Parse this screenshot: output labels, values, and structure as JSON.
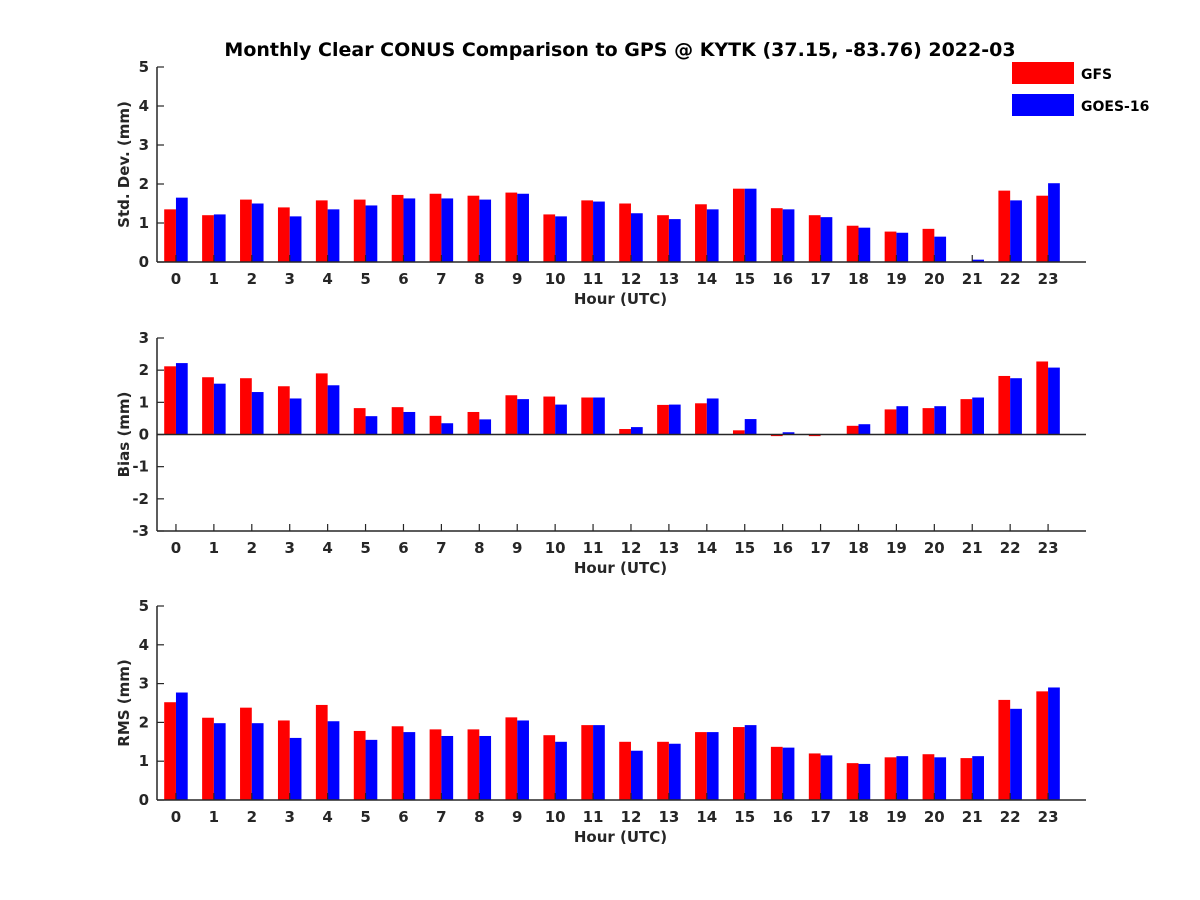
{
  "figure_title": "Monthly Clear CONUS Comparison to GPS @ KYTK (37.15, -83.76) 2022-03",
  "legend": [
    {
      "name": "GFS",
      "color": "#ff0000"
    },
    {
      "name": "GOES-16",
      "color": "#0000ff"
    }
  ],
  "chart_data": [
    {
      "type": "bar",
      "title": "",
      "xlabel": "Hour (UTC)",
      "ylabel": "Std. Dev. (mm)",
      "ylim": [
        0,
        5
      ],
      "yticks": [
        "0",
        "1",
        "2",
        "3",
        "4",
        "5"
      ],
      "categories": [
        "0",
        "1",
        "2",
        "3",
        "4",
        "5",
        "6",
        "7",
        "8",
        "9",
        "10",
        "11",
        "12",
        "13",
        "14",
        "15",
        "16",
        "17",
        "18",
        "19",
        "20",
        "21",
        "22",
        "23"
      ],
      "series": [
        {
          "name": "GFS",
          "color": "#ff0000",
          "values": [
            1.35,
            1.2,
            1.6,
            1.4,
            1.58,
            1.6,
            1.72,
            1.75,
            1.7,
            1.78,
            1.22,
            1.58,
            1.5,
            1.2,
            1.48,
            1.88,
            1.38,
            1.2,
            0.93,
            0.78,
            0.85,
            0.0,
            1.83,
            1.7
          ]
        },
        {
          "name": "GOES-16",
          "color": "#0000ff",
          "values": [
            1.65,
            1.22,
            1.5,
            1.17,
            1.35,
            1.45,
            1.63,
            1.63,
            1.6,
            1.75,
            1.17,
            1.55,
            1.25,
            1.1,
            1.35,
            1.88,
            1.35,
            1.15,
            0.88,
            0.75,
            0.65,
            0.06,
            1.58,
            2.02
          ]
        }
      ],
      "legend": "top-right",
      "grid": false
    },
    {
      "type": "bar",
      "title": "",
      "xlabel": "Hour (UTC)",
      "ylabel": "Bias (mm)",
      "ylim": [
        -3,
        3
      ],
      "yticks": [
        "-3",
        "-2",
        "-1",
        "0",
        "1",
        "2",
        "3"
      ],
      "categories": [
        "0",
        "1",
        "2",
        "3",
        "4",
        "5",
        "6",
        "7",
        "8",
        "9",
        "10",
        "11",
        "12",
        "13",
        "14",
        "15",
        "16",
        "17",
        "18",
        "19",
        "20",
        "21",
        "22",
        "23"
      ],
      "series": [
        {
          "name": "GFS",
          "color": "#ff0000",
          "values": [
            2.12,
            1.78,
            1.75,
            1.5,
            1.9,
            0.82,
            0.85,
            0.58,
            0.7,
            1.22,
            1.18,
            1.15,
            0.17,
            0.92,
            0.97,
            0.13,
            -0.05,
            -0.05,
            0.27,
            0.78,
            0.82,
            1.1,
            1.82,
            2.27
          ]
        },
        {
          "name": "GOES-16",
          "color": "#0000ff",
          "values": [
            2.22,
            1.58,
            1.32,
            1.12,
            1.53,
            0.57,
            0.7,
            0.35,
            0.47,
            1.1,
            0.93,
            1.15,
            0.23,
            0.93,
            1.12,
            0.48,
            0.07,
            0.0,
            0.32,
            0.88,
            0.88,
            1.15,
            1.75,
            2.08
          ]
        }
      ],
      "grid": false
    },
    {
      "type": "bar",
      "title": "",
      "xlabel": "Hour (UTC)",
      "ylabel": "RMS (mm)",
      "ylim": [
        0,
        5
      ],
      "yticks": [
        "0",
        "1",
        "2",
        "3",
        "4",
        "5"
      ],
      "categories": [
        "0",
        "1",
        "2",
        "3",
        "4",
        "5",
        "6",
        "7",
        "8",
        "9",
        "10",
        "11",
        "12",
        "13",
        "14",
        "15",
        "16",
        "17",
        "18",
        "19",
        "20",
        "21",
        "22",
        "23"
      ],
      "series": [
        {
          "name": "GFS",
          "color": "#ff0000",
          "values": [
            2.52,
            2.12,
            2.38,
            2.05,
            2.45,
            1.78,
            1.9,
            1.82,
            1.82,
            2.13,
            1.67,
            1.93,
            1.5,
            1.5,
            1.75,
            1.88,
            1.37,
            1.2,
            0.95,
            1.1,
            1.18,
            1.08,
            2.58,
            2.8
          ]
        },
        {
          "name": "GOES-16",
          "color": "#0000ff",
          "values": [
            2.77,
            1.98,
            1.98,
            1.6,
            2.03,
            1.55,
            1.75,
            1.65,
            1.65,
            2.05,
            1.5,
            1.93,
            1.27,
            1.45,
            1.75,
            1.93,
            1.35,
            1.15,
            0.93,
            1.13,
            1.1,
            1.13,
            2.35,
            2.9
          ]
        }
      ],
      "grid": false
    }
  ]
}
